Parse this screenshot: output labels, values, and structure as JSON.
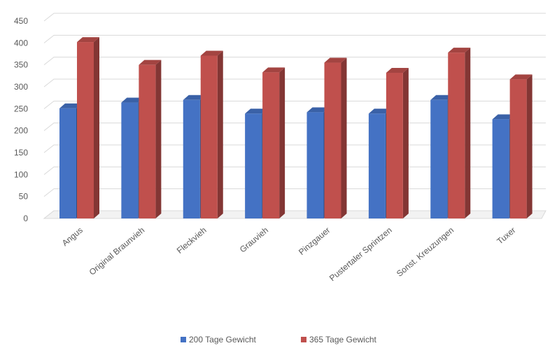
{
  "chart_data": {
    "type": "bar",
    "title": "",
    "xlabel": "",
    "ylabel": "",
    "categories": [
      "Angus",
      "Original Braunvieh",
      "Fleckvieh",
      "Grauvieh",
      "Pinzgauer",
      "Pustertaler Sprintzen",
      "Sonst. Kreuzungen",
      "Tuxer"
    ],
    "series": [
      {
        "name": "200 Tage Gewicht",
        "color": "#4472c4",
        "values": [
          251,
          264,
          270,
          239,
          242,
          239,
          270,
          226
        ]
      },
      {
        "name": "365 Tage Gewicht",
        "color": "#c0504d",
        "values": [
          402,
          350,
          371,
          333,
          355,
          332,
          378,
          317
        ]
      }
    ],
    "ylim": [
      0,
      450
    ],
    "yticks": [
      0,
      50,
      100,
      150,
      200,
      250,
      300,
      350,
      400,
      450
    ],
    "grid": true,
    "legend_position": "bottom",
    "style": "3d-clustered-column"
  }
}
